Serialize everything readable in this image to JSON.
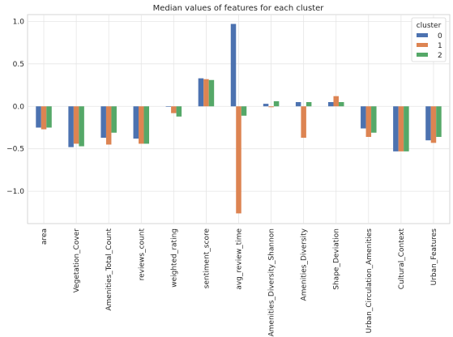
{
  "chart_data": {
    "type": "bar",
    "title": "Median values of features for each cluster",
    "xlabel": "",
    "ylabel": "",
    "ylim": [
      -1.38,
      1.08
    ],
    "yticks": [
      1.0,
      0.5,
      0.0,
      -0.5,
      -1.0
    ],
    "ytick_labels": [
      "1.0",
      "0.5",
      "0.0",
      "−0.5",
      "−1.0"
    ],
    "grid": true,
    "legend": {
      "title": "cluster",
      "placement": "top-right"
    },
    "categories": [
      "area",
      "Vegetation_Cover",
      "Amenities_Total_Count",
      "reviews_count",
      "weighted_rating",
      "sentiment_score",
      "avg_review_time",
      "Amenities_Diversity_Shannon",
      "Amenities_Diversity",
      "Shape_Deviation",
      "Urban_Circulation_Amenities",
      "Cultural_Context",
      "Urban_Features"
    ],
    "series": [
      {
        "name": "0",
        "color": "#4c72b0",
        "values": [
          -0.25,
          -0.48,
          -0.37,
          -0.38,
          0.0,
          0.33,
          0.97,
          0.03,
          0.05,
          0.05,
          -0.26,
          -0.53,
          -0.4
        ]
      },
      {
        "name": "1",
        "color": "#dd8452",
        "values": [
          -0.27,
          -0.44,
          -0.45,
          -0.44,
          -0.08,
          0.32,
          -1.26,
          -0.01,
          -0.37,
          0.12,
          -0.36,
          -0.53,
          -0.43
        ]
      },
      {
        "name": "2",
        "color": "#55a868",
        "values": [
          -0.25,
          -0.47,
          -0.31,
          -0.44,
          -0.12,
          0.31,
          -0.11,
          0.06,
          0.05,
          0.05,
          -0.31,
          -0.53,
          -0.36
        ]
      }
    ]
  }
}
